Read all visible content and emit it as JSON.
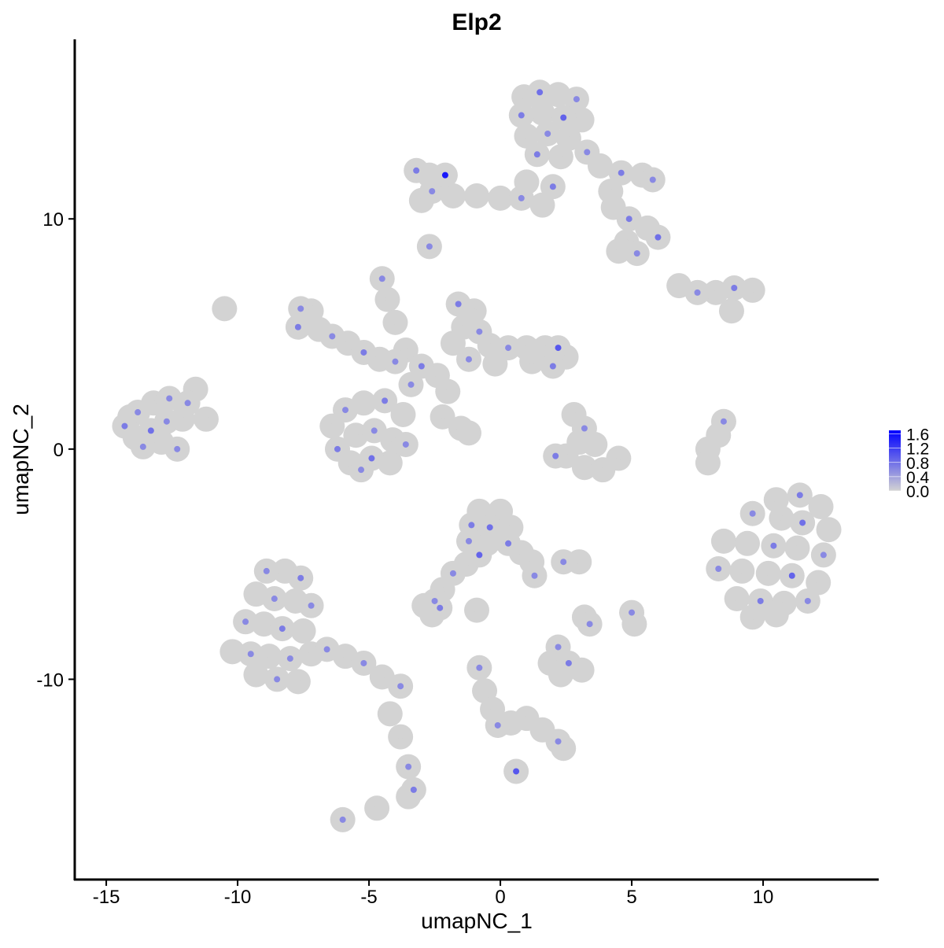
{
  "chart_data": {
    "type": "scatter",
    "title": "Elp2",
    "xlabel": "umapNC_1",
    "ylabel": "umapNC_2",
    "xlim": [
      -16.2,
      14.4
    ],
    "ylim": [
      -18.7,
      17.8
    ],
    "xticks": [
      -15,
      -10,
      -5,
      0,
      5,
      10
    ],
    "yticks": [
      -10,
      0,
      10
    ],
    "xtick_labels": [
      "-15",
      "-10",
      "-5",
      "0",
      "5",
      "10"
    ],
    "ytick_labels": [
      "-10",
      "0",
      "10"
    ],
    "grid": false,
    "legend": {
      "placement": "right",
      "type": "colorbar",
      "range": [
        0,
        1.7
      ],
      "ticks": [
        "1.6",
        "1.2",
        "0.8",
        "0.4",
        "0.0"
      ],
      "tick_values": [
        1.6,
        1.2,
        0.8,
        0.4,
        0.0
      ],
      "low_color": "#d3d3d3",
      "high_color": "#0000ff"
    },
    "point_fields": [
      "umapNC_1",
      "umapNC_2",
      "expression"
    ],
    "points": [
      [
        0.9,
        15.3,
        0
      ],
      [
        1.5,
        15.5,
        0.8
      ],
      [
        2.2,
        15.4,
        0
      ],
      [
        2.9,
        15.2,
        0.6
      ],
      [
        0.8,
        14.5,
        0.7
      ],
      [
        1.6,
        14.6,
        0
      ],
      [
        2.4,
        14.4,
        0.9
      ],
      [
        3.1,
        14.3,
        0
      ],
      [
        1.0,
        13.6,
        0
      ],
      [
        1.8,
        13.7,
        0.6
      ],
      [
        2.6,
        13.5,
        0
      ],
      [
        1.4,
        12.8,
        0.7
      ],
      [
        2.3,
        12.7,
        0
      ],
      [
        3.3,
        12.9,
        0.6
      ],
      [
        3.8,
        12.3,
        0
      ],
      [
        4.6,
        12.0,
        0.7
      ],
      [
        5.4,
        11.9,
        0
      ],
      [
        5.8,
        11.7,
        0.6
      ],
      [
        4.2,
        11.2,
        0
      ],
      [
        4.3,
        10.5,
        0
      ],
      [
        4.9,
        10.0,
        0.7
      ],
      [
        5.6,
        9.6,
        0
      ],
      [
        6.0,
        9.2,
        0.8
      ],
      [
        4.8,
        9.0,
        0
      ],
      [
        5.2,
        8.5,
        0.6
      ],
      [
        4.5,
        8.6,
        0
      ],
      [
        -3.2,
        12.1,
        0.7
      ],
      [
        -2.7,
        11.9,
        0
      ],
      [
        -2.1,
        11.9,
        1.5
      ],
      [
        -2.6,
        11.2,
        0.6
      ],
      [
        -1.8,
        11.0,
        0
      ],
      [
        -0.9,
        11.0,
        0
      ],
      [
        0,
        10.9,
        0
      ],
      [
        0.8,
        10.9,
        0.6
      ],
      [
        1.6,
        10.6,
        0
      ],
      [
        -3.0,
        10.8,
        0
      ],
      [
        1.0,
        11.6,
        0
      ],
      [
        2.0,
        11.4,
        0.7
      ],
      [
        -2.7,
        8.8,
        0.6
      ],
      [
        6.8,
        7.1,
        0
      ],
      [
        7.5,
        6.8,
        0.6
      ],
      [
        8.2,
        6.8,
        0
      ],
      [
        8.9,
        7.0,
        0.7
      ],
      [
        9.6,
        6.9,
        0
      ],
      [
        8.8,
        6.0,
        0
      ],
      [
        -7.6,
        6.1,
        0.6
      ],
      [
        -7.2,
        6.0,
        0
      ],
      [
        -7.7,
        5.3,
        0.7
      ],
      [
        -6.9,
        5.2,
        0
      ],
      [
        -6.4,
        4.9,
        0.6
      ],
      [
        -5.8,
        4.6,
        0
      ],
      [
        -5.2,
        4.2,
        0.7
      ],
      [
        -4.6,
        3.9,
        0
      ],
      [
        -4.0,
        3.8,
        0.6
      ],
      [
        -4.5,
        7.4,
        0.6
      ],
      [
        -4.3,
        6.5,
        0
      ],
      [
        -4.0,
        5.5,
        0
      ],
      [
        -3.6,
        4.3,
        0
      ],
      [
        -3.0,
        3.6,
        0.7
      ],
      [
        -2.4,
        3.2,
        0
      ],
      [
        -3.4,
        2.8,
        0.6
      ],
      [
        -2.0,
        2.5,
        0
      ],
      [
        -6.4,
        1.0,
        0
      ],
      [
        -5.9,
        1.7,
        0.6
      ],
      [
        -5.2,
        2.0,
        0
      ],
      [
        -4.4,
        2.1,
        0.7
      ],
      [
        -3.7,
        1.5,
        0
      ],
      [
        -6.2,
        0,
        0.7
      ],
      [
        -5.5,
        0.6,
        0
      ],
      [
        -4.8,
        0.8,
        0.6
      ],
      [
        -4.1,
        0.4,
        0
      ],
      [
        -3.6,
        0.2,
        0.6
      ],
      [
        -5.7,
        -0.6,
        0
      ],
      [
        -4.9,
        -0.4,
        0.8
      ],
      [
        -4.2,
        -0.6,
        0
      ],
      [
        -5.3,
        -0.9,
        0.6
      ],
      [
        -2.2,
        1.4,
        0
      ],
      [
        -1.5,
        0.9,
        0
      ],
      [
        -1.2,
        0.7,
        0
      ],
      [
        -1.6,
        6.3,
        0.7
      ],
      [
        -1.0,
        6.0,
        0
      ],
      [
        -1.4,
        5.3,
        0
      ],
      [
        -0.8,
        5.1,
        0.6
      ],
      [
        -1.8,
        4.6,
        0
      ],
      [
        -0.4,
        4.5,
        0
      ],
      [
        0.3,
        4.4,
        0.6
      ],
      [
        1.0,
        4.4,
        0
      ],
      [
        1.7,
        4.4,
        0
      ],
      [
        2.2,
        4.4,
        1.0
      ],
      [
        2.5,
        4.0,
        0
      ],
      [
        2.0,
        3.6,
        0.7
      ],
      [
        1.2,
        3.8,
        0
      ],
      [
        -0.2,
        3.7,
        0
      ],
      [
        -1.2,
        3.9,
        0.6
      ],
      [
        2.8,
        1.5,
        0
      ],
      [
        3.2,
        0.9,
        0.6
      ],
      [
        3.0,
        0.3,
        0
      ],
      [
        3.6,
        0.2,
        0
      ],
      [
        2.5,
        -0.3,
        0
      ],
      [
        3.2,
        -0.8,
        0
      ],
      [
        3.9,
        -0.9,
        0
      ],
      [
        4.5,
        -0.4,
        0
      ],
      [
        2.1,
        -0.3,
        0.7
      ],
      [
        8.5,
        1.2,
        0.6
      ],
      [
        8.3,
        0.6,
        0
      ],
      [
        7.9,
        0,
        0
      ],
      [
        7.9,
        -0.6,
        0
      ],
      [
        -14.3,
        1.0,
        0.7
      ],
      [
        -13.8,
        1.6,
        0.6
      ],
      [
        -13.2,
        2.0,
        0
      ],
      [
        -12.6,
        2.2,
        0.6
      ],
      [
        -13.9,
        0.5,
        0
      ],
      [
        -13.3,
        0.8,
        0.8
      ],
      [
        -12.7,
        1.2,
        0.6
      ],
      [
        -12.1,
        1.3,
        0
      ],
      [
        -11.6,
        2.6,
        0
      ],
      [
        -11.2,
        1.3,
        0
      ],
      [
        -13.6,
        0.1,
        0.6
      ],
      [
        -12.9,
        0.3,
        0
      ],
      [
        -12.3,
        0,
        0.6
      ],
      [
        -14.1,
        1.4,
        0
      ],
      [
        -11.9,
        2.0,
        0.6
      ],
      [
        -10.5,
        6.1,
        0
      ],
      [
        10.5,
        -2.2,
        0
      ],
      [
        11.4,
        -2.0,
        0.7
      ],
      [
        12.2,
        -2.5,
        0
      ],
      [
        9.6,
        -2.8,
        0.6
      ],
      [
        10.7,
        -3.0,
        0
      ],
      [
        11.5,
        -3.2,
        0.8
      ],
      [
        12.5,
        -3.5,
        0
      ],
      [
        8.5,
        -4.0,
        0
      ],
      [
        9.4,
        -4.1,
        0
      ],
      [
        10.4,
        -4.2,
        0.7
      ],
      [
        11.3,
        -4.3,
        0
      ],
      [
        12.3,
        -4.6,
        0.6
      ],
      [
        8.3,
        -5.2,
        0.6
      ],
      [
        9.2,
        -5.3,
        0
      ],
      [
        10.2,
        -5.4,
        0
      ],
      [
        11.1,
        -5.5,
        0.9
      ],
      [
        12.1,
        -5.8,
        0
      ],
      [
        9.0,
        -6.5,
        0
      ],
      [
        9.9,
        -6.6,
        0.7
      ],
      [
        10.8,
        -6.7,
        0
      ],
      [
        11.7,
        -6.6,
        0.6
      ],
      [
        9.6,
        -7.3,
        0
      ],
      [
        10.5,
        -7.2,
        0
      ],
      [
        -8.9,
        -5.3,
        0.6
      ],
      [
        -8.2,
        -5.3,
        0
      ],
      [
        -7.6,
        -5.6,
        0.7
      ],
      [
        -9.3,
        -6.3,
        0
      ],
      [
        -8.6,
        -6.5,
        0.6
      ],
      [
        -7.8,
        -6.6,
        0
      ],
      [
        -7.2,
        -6.8,
        0.6
      ],
      [
        -9.7,
        -7.5,
        0.6
      ],
      [
        -9.0,
        -7.6,
        0
      ],
      [
        -8.3,
        -7.8,
        0.7
      ],
      [
        -7.5,
        -7.9,
        0
      ],
      [
        -10.2,
        -8.8,
        0
      ],
      [
        -9.5,
        -8.9,
        0.6
      ],
      [
        -8.8,
        -9.0,
        0
      ],
      [
        -8.0,
        -9.1,
        0.6
      ],
      [
        -7.2,
        -8.9,
        0
      ],
      [
        -9.3,
        -9.8,
        0
      ],
      [
        -8.5,
        -10.0,
        0.6
      ],
      [
        -7.7,
        -10.1,
        0
      ],
      [
        -6.6,
        -8.7,
        0.6
      ],
      [
        -5.9,
        -9.0,
        0
      ],
      [
        -5.2,
        -9.3,
        0.6
      ],
      [
        -4.5,
        -9.9,
        0
      ],
      [
        -3.8,
        -10.3,
        0.6
      ],
      [
        -4.2,
        -11.5,
        0
      ],
      [
        -3.8,
        -12.5,
        0
      ],
      [
        -3.5,
        -13.8,
        0.6
      ],
      [
        -3.3,
        -14.8,
        0.7
      ],
      [
        -3.5,
        -15.1,
        0
      ],
      [
        -6.0,
        -16.1,
        0.6
      ],
      [
        -4.7,
        -15.6,
        0
      ],
      [
        -0.8,
        -2.7,
        0
      ],
      [
        0,
        -2.7,
        0
      ],
      [
        -1.1,
        -3.3,
        0.7
      ],
      [
        -0.4,
        -3.4,
        0.8
      ],
      [
        0.4,
        -3.4,
        0
      ],
      [
        -1.2,
        -4.0,
        0.6
      ],
      [
        -0.5,
        -4.1,
        0
      ],
      [
        0.3,
        -4.1,
        0.7
      ],
      [
        -0.8,
        -4.6,
        0.9
      ],
      [
        0.8,
        -4.5,
        0
      ],
      [
        1.2,
        -4.9,
        0
      ],
      [
        1.3,
        -5.5,
        0.6
      ],
      [
        -1.3,
        -5.0,
        0
      ],
      [
        -1.8,
        -5.4,
        0.6
      ],
      [
        -2.2,
        -6.1,
        0
      ],
      [
        -2.5,
        -6.6,
        0.6
      ],
      [
        -2.9,
        -6.8,
        0
      ],
      [
        -2.3,
        -6.9,
        0.7
      ],
      [
        -2.6,
        -7.2,
        0
      ],
      [
        -0.9,
        -7.0,
        0
      ],
      [
        3.0,
        -4.9,
        0
      ],
      [
        2.4,
        -4.9,
        0.6
      ],
      [
        3.2,
        -7.3,
        0
      ],
      [
        3.4,
        -7.6,
        0.6
      ],
      [
        5.0,
        -7.1,
        0.6
      ],
      [
        5.1,
        -7.6,
        0
      ],
      [
        2.2,
        -8.6,
        0.6
      ],
      [
        1.9,
        -9.3,
        0
      ],
      [
        2.6,
        -9.3,
        0.7
      ],
      [
        3.1,
        -9.6,
        0
      ],
      [
        2.3,
        -9.8,
        0
      ],
      [
        -0.8,
        -9.5,
        0.6
      ],
      [
        -0.6,
        -10.5,
        0
      ],
      [
        -0.3,
        -11.3,
        0
      ],
      [
        -0.1,
        -12.0,
        0.6
      ],
      [
        0.4,
        -11.9,
        0
      ],
      [
        1.0,
        -11.7,
        0
      ],
      [
        1.6,
        -12.2,
        0
      ],
      [
        2.2,
        -12.7,
        0.6
      ],
      [
        2.4,
        -13.0,
        0
      ],
      [
        0.6,
        -14.0,
        1.0
      ]
    ]
  }
}
